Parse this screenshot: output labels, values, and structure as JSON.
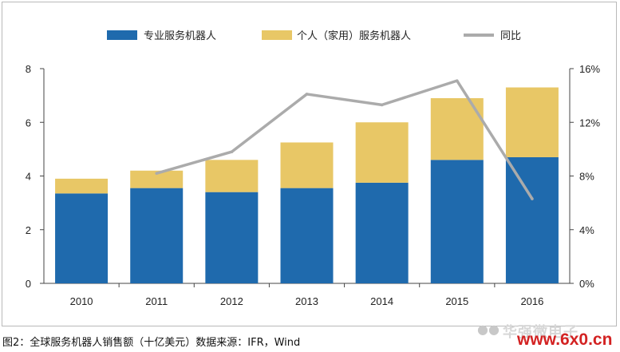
{
  "chart_data": {
    "type": "bar",
    "stacked": true,
    "categories": [
      "2010",
      "2011",
      "2012",
      "2013",
      "2014",
      "2015",
      "2016"
    ],
    "series": [
      {
        "name": "专业服务机器人",
        "axis": "left",
        "color": "#1f6aad",
        "values": [
          3.35,
          3.55,
          3.4,
          3.55,
          3.75,
          4.6,
          4.7
        ]
      },
      {
        "name": "个人（家用）服务机器人",
        "axis": "left",
        "color": "#e8c766",
        "values": [
          0.55,
          0.65,
          1.2,
          1.7,
          2.25,
          2.3,
          2.6
        ]
      },
      {
        "name": "同比",
        "type": "line",
        "axis": "right",
        "color": "#ababab",
        "values": [
          null,
          8.2,
          9.8,
          14.1,
          13.3,
          15.1,
          6.3
        ]
      }
    ],
    "y_left": {
      "ticks": [
        "0",
        "2",
        "4",
        "6",
        "8"
      ],
      "min": 0,
      "max": 8
    },
    "y_right": {
      "ticks": [
        "0%",
        "4%",
        "8%",
        "12%",
        "16%"
      ],
      "min": 0,
      "max": 16
    },
    "legend_position": "top",
    "grid": false
  },
  "caption": "图2：全球服务机器人销售额（十亿美元）数据来源：IFR，Wind",
  "watermark": {
    "text": "华强微电子",
    "site": "www.6x0.cn"
  }
}
